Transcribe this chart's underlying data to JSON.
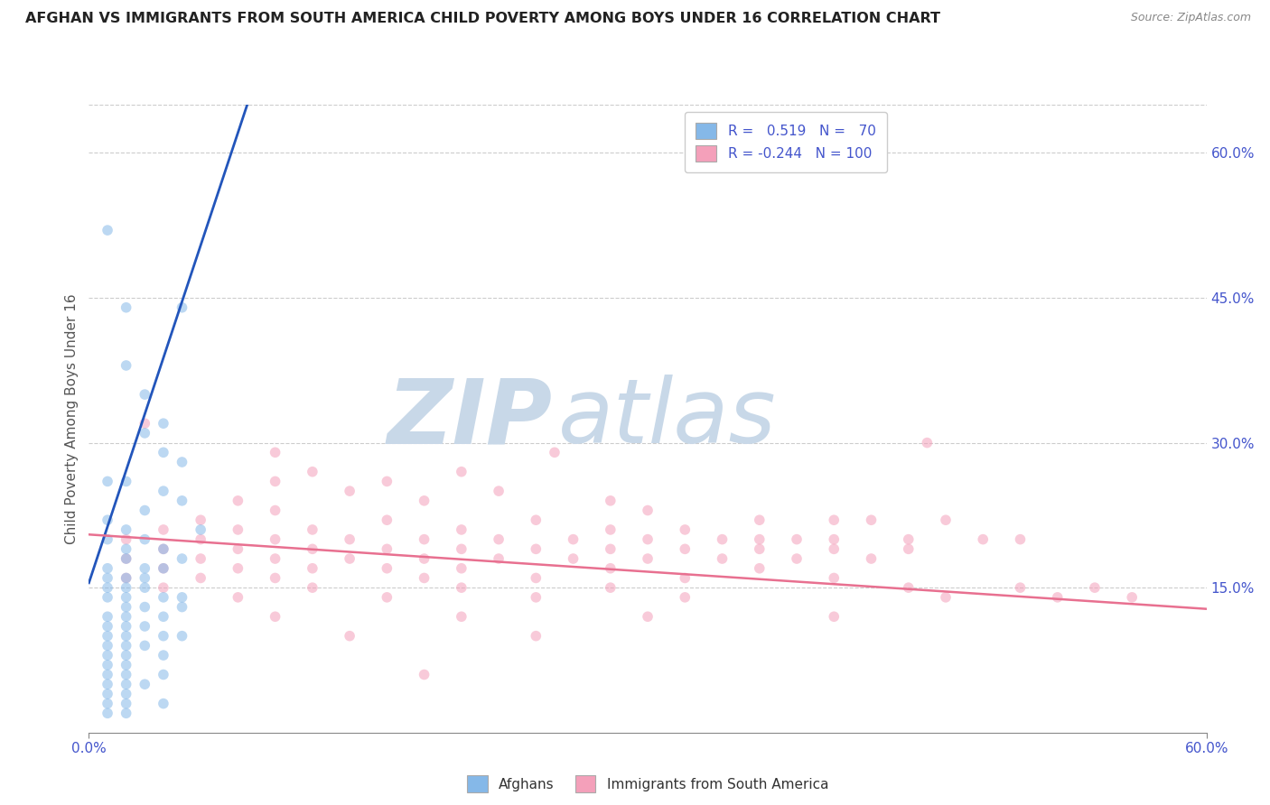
{
  "title": "AFGHAN VS IMMIGRANTS FROM SOUTH AMERICA CHILD POVERTY AMONG BOYS UNDER 16 CORRELATION CHART",
  "source": "Source: ZipAtlas.com",
  "ylabel_label": "Child Poverty Among Boys Under 16",
  "right_yticks": [
    "60.0%",
    "45.0%",
    "30.0%",
    "15.0%"
  ],
  "right_ytick_vals": [
    0.6,
    0.45,
    0.3,
    0.15
  ],
  "xlim": [
    0.0,
    0.6
  ],
  "ylim": [
    0.0,
    0.65
  ],
  "r_blue": 0.519,
  "n_blue": 70,
  "r_pink": -0.244,
  "n_pink": 100,
  "watermark_zip": "ZIP",
  "watermark_atlas": "atlas",
  "legend_label_afghans": "Afghans",
  "legend_label_sa": "Immigrants from South America",
  "blue_scatter": [
    [
      0.01,
      0.52
    ],
    [
      0.02,
      0.44
    ],
    [
      0.05,
      0.44
    ],
    [
      0.02,
      0.38
    ],
    [
      0.03,
      0.35
    ],
    [
      0.04,
      0.32
    ],
    [
      0.03,
      0.31
    ],
    [
      0.04,
      0.29
    ],
    [
      0.05,
      0.28
    ],
    [
      0.02,
      0.26
    ],
    [
      0.01,
      0.26
    ],
    [
      0.04,
      0.25
    ],
    [
      0.05,
      0.24
    ],
    [
      0.03,
      0.23
    ],
    [
      0.01,
      0.22
    ],
    [
      0.02,
      0.21
    ],
    [
      0.06,
      0.21
    ],
    [
      0.03,
      0.2
    ],
    [
      0.01,
      0.2
    ],
    [
      0.02,
      0.19
    ],
    [
      0.04,
      0.19
    ],
    [
      0.05,
      0.18
    ],
    [
      0.02,
      0.18
    ],
    [
      0.01,
      0.17
    ],
    [
      0.03,
      0.17
    ],
    [
      0.04,
      0.17
    ],
    [
      0.02,
      0.16
    ],
    [
      0.03,
      0.16
    ],
    [
      0.01,
      0.16
    ],
    [
      0.02,
      0.15
    ],
    [
      0.03,
      0.15
    ],
    [
      0.01,
      0.15
    ],
    [
      0.02,
      0.14
    ],
    [
      0.04,
      0.14
    ],
    [
      0.05,
      0.14
    ],
    [
      0.01,
      0.14
    ],
    [
      0.02,
      0.13
    ],
    [
      0.03,
      0.13
    ],
    [
      0.05,
      0.13
    ],
    [
      0.01,
      0.12
    ],
    [
      0.02,
      0.12
    ],
    [
      0.04,
      0.12
    ],
    [
      0.01,
      0.11
    ],
    [
      0.02,
      0.11
    ],
    [
      0.03,
      0.11
    ],
    [
      0.01,
      0.1
    ],
    [
      0.02,
      0.1
    ],
    [
      0.04,
      0.1
    ],
    [
      0.05,
      0.1
    ],
    [
      0.01,
      0.09
    ],
    [
      0.02,
      0.09
    ],
    [
      0.03,
      0.09
    ],
    [
      0.01,
      0.08
    ],
    [
      0.02,
      0.08
    ],
    [
      0.04,
      0.08
    ],
    [
      0.01,
      0.07
    ],
    [
      0.02,
      0.07
    ],
    [
      0.01,
      0.06
    ],
    [
      0.02,
      0.06
    ],
    [
      0.04,
      0.06
    ],
    [
      0.01,
      0.05
    ],
    [
      0.02,
      0.05
    ],
    [
      0.03,
      0.05
    ],
    [
      0.01,
      0.04
    ],
    [
      0.02,
      0.04
    ],
    [
      0.01,
      0.03
    ],
    [
      0.02,
      0.03
    ],
    [
      0.04,
      0.03
    ],
    [
      0.01,
      0.02
    ],
    [
      0.02,
      0.02
    ]
  ],
  "pink_scatter": [
    [
      0.03,
      0.32
    ],
    [
      0.1,
      0.29
    ],
    [
      0.25,
      0.29
    ],
    [
      0.45,
      0.3
    ],
    [
      0.1,
      0.26
    ],
    [
      0.12,
      0.27
    ],
    [
      0.16,
      0.26
    ],
    [
      0.2,
      0.27
    ],
    [
      0.08,
      0.24
    ],
    [
      0.14,
      0.25
    ],
    [
      0.22,
      0.25
    ],
    [
      0.28,
      0.24
    ],
    [
      0.06,
      0.22
    ],
    [
      0.1,
      0.23
    ],
    [
      0.18,
      0.24
    ],
    [
      0.3,
      0.23
    ],
    [
      0.36,
      0.22
    ],
    [
      0.4,
      0.22
    ],
    [
      0.42,
      0.22
    ],
    [
      0.46,
      0.22
    ],
    [
      0.04,
      0.21
    ],
    [
      0.08,
      0.21
    ],
    [
      0.12,
      0.21
    ],
    [
      0.16,
      0.22
    ],
    [
      0.2,
      0.21
    ],
    [
      0.24,
      0.22
    ],
    [
      0.28,
      0.21
    ],
    [
      0.32,
      0.21
    ],
    [
      0.36,
      0.2
    ],
    [
      0.38,
      0.2
    ],
    [
      0.44,
      0.2
    ],
    [
      0.48,
      0.2
    ],
    [
      0.02,
      0.2
    ],
    [
      0.06,
      0.2
    ],
    [
      0.1,
      0.2
    ],
    [
      0.14,
      0.2
    ],
    [
      0.18,
      0.2
    ],
    [
      0.22,
      0.2
    ],
    [
      0.26,
      0.2
    ],
    [
      0.3,
      0.2
    ],
    [
      0.34,
      0.2
    ],
    [
      0.4,
      0.2
    ],
    [
      0.5,
      0.2
    ],
    [
      0.04,
      0.19
    ],
    [
      0.08,
      0.19
    ],
    [
      0.12,
      0.19
    ],
    [
      0.16,
      0.19
    ],
    [
      0.2,
      0.19
    ],
    [
      0.24,
      0.19
    ],
    [
      0.28,
      0.19
    ],
    [
      0.32,
      0.19
    ],
    [
      0.36,
      0.19
    ],
    [
      0.4,
      0.19
    ],
    [
      0.44,
      0.19
    ],
    [
      0.02,
      0.18
    ],
    [
      0.06,
      0.18
    ],
    [
      0.1,
      0.18
    ],
    [
      0.14,
      0.18
    ],
    [
      0.18,
      0.18
    ],
    [
      0.22,
      0.18
    ],
    [
      0.26,
      0.18
    ],
    [
      0.3,
      0.18
    ],
    [
      0.34,
      0.18
    ],
    [
      0.38,
      0.18
    ],
    [
      0.42,
      0.18
    ],
    [
      0.04,
      0.17
    ],
    [
      0.08,
      0.17
    ],
    [
      0.12,
      0.17
    ],
    [
      0.16,
      0.17
    ],
    [
      0.2,
      0.17
    ],
    [
      0.28,
      0.17
    ],
    [
      0.36,
      0.17
    ],
    [
      0.02,
      0.16
    ],
    [
      0.06,
      0.16
    ],
    [
      0.1,
      0.16
    ],
    [
      0.18,
      0.16
    ],
    [
      0.24,
      0.16
    ],
    [
      0.32,
      0.16
    ],
    [
      0.4,
      0.16
    ],
    [
      0.04,
      0.15
    ],
    [
      0.12,
      0.15
    ],
    [
      0.2,
      0.15
    ],
    [
      0.28,
      0.15
    ],
    [
      0.44,
      0.15
    ],
    [
      0.5,
      0.15
    ],
    [
      0.54,
      0.15
    ],
    [
      0.08,
      0.14
    ],
    [
      0.16,
      0.14
    ],
    [
      0.24,
      0.14
    ],
    [
      0.32,
      0.14
    ],
    [
      0.46,
      0.14
    ],
    [
      0.52,
      0.14
    ],
    [
      0.56,
      0.14
    ],
    [
      0.1,
      0.12
    ],
    [
      0.2,
      0.12
    ],
    [
      0.3,
      0.12
    ],
    [
      0.4,
      0.12
    ],
    [
      0.14,
      0.1
    ],
    [
      0.24,
      0.1
    ],
    [
      0.18,
      0.06
    ]
  ],
  "blue_color": "#85b8e8",
  "pink_color": "#f4a0ba",
  "blue_line_color": "#2255bb",
  "pink_line_color": "#e87090",
  "blue_line_x0": 0.0,
  "blue_line_y0": 0.155,
  "blue_line_x1": 0.085,
  "blue_line_y1": 0.65,
  "pink_line_x0": 0.0,
  "pink_line_y0": 0.205,
  "pink_line_x1": 0.6,
  "pink_line_y1": 0.128,
  "dot_size": 70,
  "dot_alpha": 0.55,
  "bg_color": "#ffffff",
  "watermark_color": "#c8d8e8",
  "grid_color": "#cccccc",
  "title_color": "#222222",
  "axis_label_color": "#555555",
  "tick_color": "#4455cc",
  "legend_r_color": "#4455cc"
}
